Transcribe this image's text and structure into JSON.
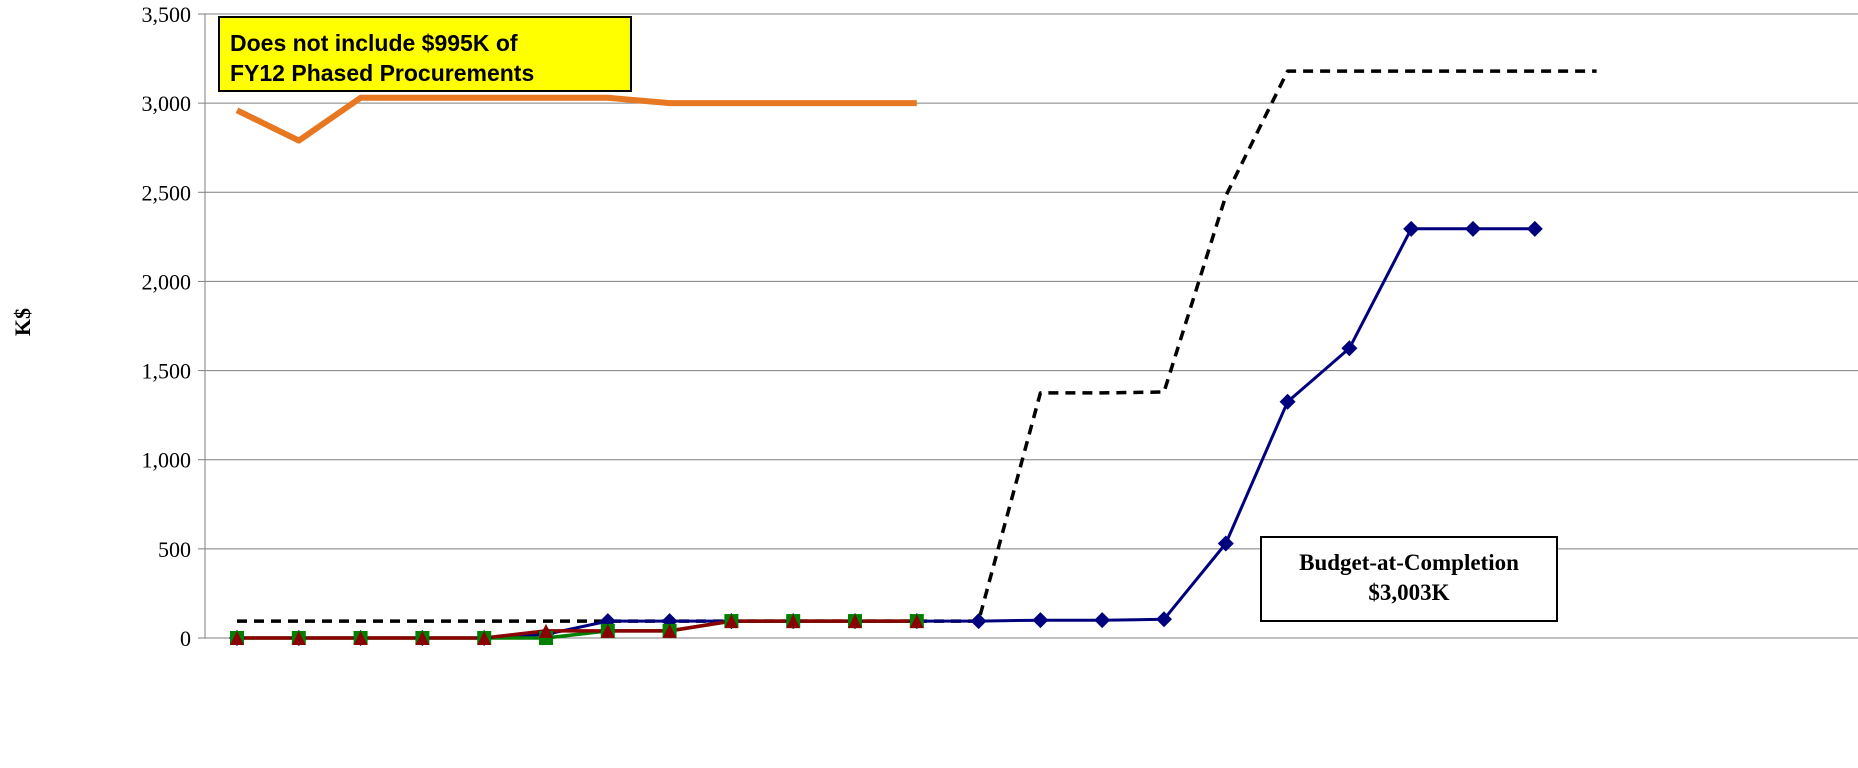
{
  "chart_data": {
    "type": "line",
    "title": "",
    "xlabel": "",
    "ylabel": "K$",
    "ylim": [
      0,
      3500
    ],
    "yticks": [
      0,
      500,
      1000,
      1500,
      2000,
      2500,
      3000,
      3500
    ],
    "ytick_labels": [
      "0",
      "500",
      "1,000",
      "1,500",
      "2,000",
      "2,500",
      "3,000",
      "3,500"
    ],
    "grid": true,
    "legend": "none",
    "x": [
      1,
      2,
      3,
      4,
      5,
      6,
      7,
      8,
      9,
      10,
      11,
      12,
      13,
      14,
      15,
      16,
      17,
      18,
      19,
      20,
      21,
      22,
      23
    ],
    "series": [
      {
        "style": "dashed",
        "color": "#000000",
        "marker": "none",
        "values": [
          95,
          95,
          95,
          95,
          95,
          95,
          95,
          95,
          95,
          95,
          95,
          95,
          95,
          1375,
          1375,
          1380,
          2480,
          3180,
          3180,
          3180,
          3180,
          3180,
          3180
        ]
      },
      {
        "style": "solid",
        "color": "#00007f",
        "marker": "diamond",
        "values": [
          0,
          0,
          0,
          0,
          0,
          20,
          95,
          95,
          95,
          95,
          95,
          95,
          95,
          100,
          100,
          105,
          530,
          1325,
          1625,
          2295,
          2295,
          2295,
          null
        ]
      },
      {
        "style": "solid",
        "color": "#008000",
        "marker": "square",
        "values": [
          0,
          0,
          0,
          0,
          0,
          0,
          40,
          40,
          95,
          95,
          95,
          95,
          null,
          null,
          null,
          null,
          null,
          null,
          null,
          null,
          null,
          null,
          null
        ]
      },
      {
        "style": "solid",
        "color": "#8b0000",
        "marker": "triangle",
        "values": [
          0,
          0,
          0,
          0,
          0,
          40,
          40,
          40,
          95,
          95,
          95,
          95,
          null,
          null,
          null,
          null,
          null,
          null,
          null,
          null,
          null,
          null,
          null
        ]
      },
      {
        "style": "solid",
        "color": "#e87722",
        "marker": "none",
        "values": [
          2960,
          2790,
          3030,
          3030,
          3030,
          3030,
          3030,
          3000,
          3000,
          3000,
          3000,
          3000,
          null,
          null,
          null,
          null,
          null,
          null,
          null,
          null,
          null,
          null,
          null
        ]
      }
    ],
    "annotations": [
      {
        "lines": [
          "Does not include $995K of",
          "FY12 Phased Procurements"
        ],
        "background": "#ffff00"
      },
      {
        "lines": [
          "Budget-at-Completion",
          "$3,003K"
        ],
        "background": "#ffffff"
      }
    ]
  }
}
